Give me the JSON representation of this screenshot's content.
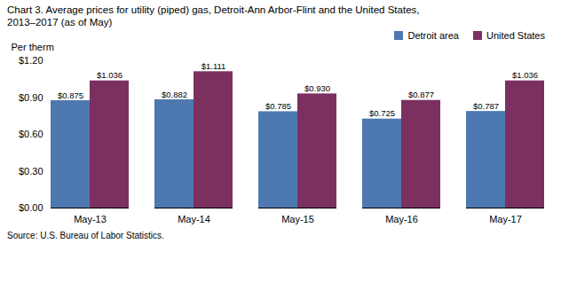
{
  "chart_data": {
    "type": "bar",
    "title": "Chart 3. Average prices for utility (piped) gas, Detroit-Ann Arbor-Flint and the United States,",
    "subtitle": "2013–2017  (as of May)",
    "ylabel": "Per therm",
    "source": "Source: U.S. Bureau of Labor Statistics.",
    "categories": [
      "May-13",
      "May-14",
      "May-15",
      "May-16",
      "May-17"
    ],
    "series": [
      {
        "name": "Detroit area",
        "color": "#4E78B0",
        "values": [
          0.875,
          0.882,
          0.785,
          0.725,
          0.787
        ],
        "value_labels": [
          "$0.875",
          "$0.882",
          "$0.785",
          "$0.725",
          "$0.787"
        ]
      },
      {
        "name": "United States",
        "color": "#7B3060",
        "values": [
          1.036,
          1.111,
          0.93,
          0.877,
          1.036
        ],
        "value_labels": [
          "$1.036",
          "$1.111",
          "$0.930",
          "$0.877",
          "$1.036"
        ]
      }
    ],
    "ylim": [
      0.0,
      1.2
    ],
    "yticks": [
      {
        "value": 0.0,
        "label": "$0.00"
      },
      {
        "value": 0.3,
        "label": "$0.30"
      },
      {
        "value": 0.6,
        "label": "$0.60"
      },
      {
        "value": 0.9,
        "label": "$0.90"
      },
      {
        "value": 1.2,
        "label": "$1.20"
      }
    ],
    "data_labels": true,
    "legend": "upper right",
    "grid": false
  }
}
